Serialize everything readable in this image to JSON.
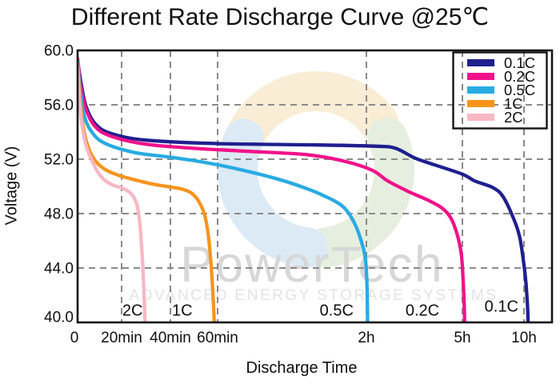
{
  "title": "Different Rate Discharge Curve @25℃",
  "axes": {
    "y_label": "Voltage (V)",
    "x_label": "Discharge Time",
    "y_ticks": [
      {
        "label": "60.0",
        "value": 60
      },
      {
        "label": "56.0",
        "value": 56
      },
      {
        "label": "52.0",
        "value": 52
      },
      {
        "label": "48.0",
        "value": 48
      },
      {
        "label": "44.0",
        "value": 44
      },
      {
        "label": "40.0",
        "value": 40
      }
    ],
    "x_ticks": [
      {
        "label": "0",
        "minutes": 0
      },
      {
        "label": "20min",
        "minutes": 20
      },
      {
        "label": "40min",
        "minutes": 40
      },
      {
        "label": "60min",
        "minutes": 60
      },
      {
        "label": "2h",
        "minutes": 120
      },
      {
        "label": "5h",
        "minutes": 300
      },
      {
        "label": "10h",
        "minutes": 600
      }
    ]
  },
  "watermark": {
    "brand": "PowerTech",
    "tagline": "ADVANCED ENERGY STORAGE SYSTEMS",
    "brand_color": "#d7d7d7",
    "tagline_color": "#e3e3e3",
    "logo_colors": {
      "top": "#f2d9a6",
      "right": "#c9ddb9",
      "left": "#b3d2ec"
    }
  },
  "grid_color": "#8a8a8a",
  "frame_color": "#151515",
  "chart_data": {
    "type": "line",
    "title": "Different Rate Discharge Curve @25℃",
    "xlabel": "Discharge Time",
    "ylabel": "Voltage (V)",
    "ylim": [
      40,
      60
    ],
    "grid": true,
    "legend_position": "top-right",
    "x_axis_minutes": [
      0,
      20,
      40,
      60,
      120,
      300,
      600
    ],
    "x_axis_labels": [
      "0",
      "20min",
      "40min",
      "60min",
      "2h",
      "5h",
      "10h"
    ],
    "series": [
      {
        "name": "0.1C",
        "color": "#1f1f8f",
        "points": [
          [
            0,
            59.2
          ],
          [
            2,
            57.2
          ],
          [
            4,
            55.8
          ],
          [
            8,
            54.6
          ],
          [
            15,
            53.9
          ],
          [
            30,
            53.4
          ],
          [
            60,
            53.15
          ],
          [
            100,
            53.05
          ],
          [
            140,
            52.95
          ],
          [
            175,
            52.8
          ],
          [
            210,
            52.1
          ],
          [
            243,
            51.65
          ],
          [
            300,
            50.9
          ],
          [
            360,
            50.4
          ],
          [
            450,
            49.9
          ],
          [
            500,
            49.2
          ],
          [
            553,
            47.5
          ],
          [
            580,
            46.2
          ],
          [
            600,
            44.2
          ],
          [
            610,
            42.8
          ],
          [
            617,
            41.2
          ],
          [
            620,
            40
          ]
        ]
      },
      {
        "name": "0.2C",
        "color": "#f0128a",
        "points": [
          [
            0,
            59.4
          ],
          [
            1.5,
            57.3
          ],
          [
            4,
            55.6
          ],
          [
            8,
            54.4
          ],
          [
            15,
            53.7
          ],
          [
            30,
            53.1
          ],
          [
            50,
            52.8
          ],
          [
            70,
            52.6
          ],
          [
            95,
            52.35
          ],
          [
            110,
            51.9
          ],
          [
            130,
            51.2
          ],
          [
            160,
            50.4
          ],
          [
            200,
            49.6
          ],
          [
            235,
            49.0
          ],
          [
            262,
            48.4
          ],
          [
            278,
            47.7
          ],
          [
            290,
            46.5
          ],
          [
            298,
            45.0
          ],
          [
            304,
            43.0
          ],
          [
            309,
            41.2
          ],
          [
            311,
            40
          ]
        ]
      },
      {
        "name": "0.5C",
        "color": "#29abe2",
        "points": [
          [
            0,
            59.2
          ],
          [
            1.2,
            57.0
          ],
          [
            3,
            55.2
          ],
          [
            6,
            54.1
          ],
          [
            12,
            53.2
          ],
          [
            25,
            52.5
          ],
          [
            40,
            52.15
          ],
          [
            55,
            51.75
          ],
          [
            70,
            51.2
          ],
          [
            85,
            50.5
          ],
          [
            95,
            49.9
          ],
          [
            103,
            49.3
          ],
          [
            110,
            48.6
          ],
          [
            114,
            47.7
          ],
          [
            117,
            46.5
          ],
          [
            119.5,
            44.8
          ],
          [
            121,
            42.8
          ],
          [
            122.3,
            40
          ]
        ]
      },
      {
        "name": "1C",
        "color": "#f7941d",
        "points": [
          [
            0,
            59.0
          ],
          [
            1,
            56.6
          ],
          [
            2.5,
            54.4
          ],
          [
            5,
            52.8
          ],
          [
            8,
            51.9
          ],
          [
            12,
            51.3
          ],
          [
            18,
            50.85
          ],
          [
            25,
            50.5
          ],
          [
            32,
            50.2
          ],
          [
            40,
            49.95
          ],
          [
            45,
            49.8
          ],
          [
            49,
            49.5
          ],
          [
            52,
            48.9
          ],
          [
            54.5,
            47.9
          ],
          [
            56,
            46.5
          ],
          [
            57,
            44.8
          ],
          [
            57.9,
            42.5
          ],
          [
            58.6,
            40
          ]
        ]
      },
      {
        "name": "2C",
        "color": "#f6b8c4",
        "points": [
          [
            0,
            58.8
          ],
          [
            0.8,
            56.4
          ],
          [
            2,
            54.5
          ],
          [
            4,
            52.9
          ],
          [
            6.5,
            51.9
          ],
          [
            9,
            51.1
          ],
          [
            12,
            50.5
          ],
          [
            16,
            50.1
          ],
          [
            20,
            49.9
          ],
          [
            23,
            49.6
          ],
          [
            25,
            49.2
          ],
          [
            26.5,
            48.5
          ],
          [
            27.5,
            47.2
          ],
          [
            28.3,
            45.3
          ],
          [
            29,
            43.0
          ],
          [
            29.6,
            40
          ]
        ]
      }
    ],
    "annotations": [
      {
        "text": "2C",
        "minutes": 24.5,
        "voltage": 40.9
      },
      {
        "text": "1C",
        "minutes": 45,
        "voltage": 40.9
      },
      {
        "text": "0.5C",
        "minutes": 108,
        "voltage": 40.9
      },
      {
        "text": "0.2C",
        "minutes": 225,
        "voltage": 40.9
      },
      {
        "text": "0.1C",
        "minutes": 490,
        "voltage": 41.2
      }
    ]
  }
}
